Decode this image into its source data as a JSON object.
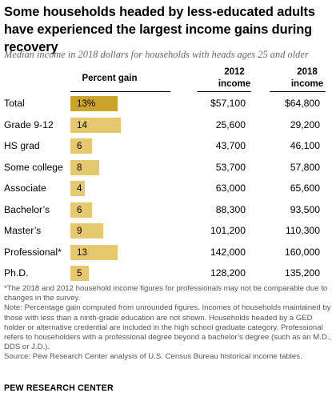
{
  "title": "Some households headed by less-educated adults have experienced the largest income gains during recovery",
  "subtitle": "Median income in 2018 dollars for households with heads ages 25 and older",
  "headers": {
    "gain": "Percent gain",
    "y2012_line1": "2012",
    "y2012_line2": "income",
    "y2018_line1": "2018",
    "y2018_line2": "income"
  },
  "colors": {
    "bar": "#e6c96f",
    "bar_highlight": "#cba42c"
  },
  "chart_data": {
    "type": "table",
    "columns": [
      "Percent gain",
      "2012 income",
      "2018 income"
    ],
    "rows": [
      {
        "label": "Total",
        "gain": 13,
        "gain_text": "13%",
        "income_2012": "$57,100",
        "income_2018": "$64,800",
        "highlight": true
      },
      {
        "label": "Grade 9-12",
        "gain": 14,
        "gain_text": "14",
        "income_2012": "25,600",
        "income_2018": "29,200"
      },
      {
        "label": "HS grad",
        "gain": 6,
        "gain_text": "6",
        "income_2012": "43,700",
        "income_2018": "46,100"
      },
      {
        "label": "Some college",
        "gain": 8,
        "gain_text": "8",
        "income_2012": "53,700",
        "income_2018": "57,800"
      },
      {
        "label": "Associate",
        "gain": 4,
        "gain_text": "4",
        "income_2012": "63,000",
        "income_2018": "65,600"
      },
      {
        "label": "Bachelor’s",
        "gain": 6,
        "gain_text": "6",
        "income_2012": "88,300",
        "income_2018": "93,500"
      },
      {
        "label": "Master’s",
        "gain": 9,
        "gain_text": "9",
        "income_2012": "101,200",
        "income_2018": "110,300"
      },
      {
        "label": "Professional*",
        "gain": 13,
        "gain_text": "13",
        "income_2012": "142,000",
        "income_2018": "160,000"
      },
      {
        "label": "Ph.D.",
        "gain": 5,
        "gain_text": "5",
        "income_2012": "128,200",
        "income_2018": "135,200"
      }
    ]
  },
  "notes": {
    "asterisk": "*The 2018 and 2012 household income figures for professionals may not be comparable due to changes in the survey.",
    "note": "Note: Percentage gain computed from unrounded figures. Incomes of households maintained by those with less than a ninth-grade education are not shown. Households headed by a GED holder or alternative credential are included in the high school graduate category. Professional refers to householders with a professional degree beyond a bachelor’s degree (such as an M.D., DDS or J.D.).",
    "source": "Source: Pew Research Center analysis of U.S. Census Bureau historical income tables."
  },
  "credit": "PEW RESEARCH CENTER"
}
